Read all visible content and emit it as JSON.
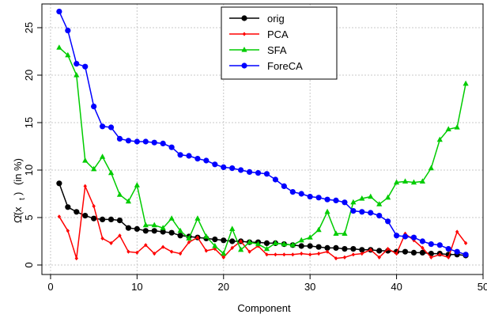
{
  "chart_data": {
    "type": "line",
    "xlabel": "Component",
    "ylabel": "(in %)",
    "xlim": [
      -1,
      50
    ],
    "ylim": [
      -1,
      27.5
    ],
    "xticks": [
      0,
      10,
      20,
      30,
      40,
      50
    ],
    "yticks": [
      0,
      5,
      10,
      15,
      20,
      25
    ],
    "grid": true,
    "legend_position": "top-center",
    "x": [
      1,
      2,
      3,
      4,
      5,
      6,
      7,
      8,
      9,
      10,
      11,
      12,
      13,
      14,
      15,
      16,
      17,
      18,
      19,
      20,
      21,
      22,
      23,
      24,
      25,
      26,
      27,
      28,
      29,
      30,
      31,
      32,
      33,
      34,
      35,
      36,
      37,
      38,
      39,
      40,
      41,
      42,
      43,
      44,
      45,
      46,
      47,
      48
    ],
    "series": [
      {
        "name": "orig",
        "color": "#000000",
        "marker": "circle",
        "values": [
          8.6,
          6.1,
          5.6,
          5.2,
          4.9,
          4.8,
          4.8,
          4.7,
          3.9,
          3.8,
          3.6,
          3.6,
          3.5,
          3.4,
          3.1,
          3.0,
          2.9,
          2.8,
          2.7,
          2.6,
          2.5,
          2.5,
          2.4,
          2.4,
          2.3,
          2.3,
          2.2,
          2.1,
          2.0,
          2.0,
          1.9,
          1.8,
          1.8,
          1.7,
          1.7,
          1.6,
          1.6,
          1.5,
          1.5,
          1.4,
          1.4,
          1.3,
          1.3,
          1.2,
          1.2,
          1.1,
          1.1,
          1.0
        ]
      },
      {
        "name": "PCA",
        "color": "#ff0000",
        "marker": "diamond",
        "values": [
          5.1,
          3.6,
          0.7,
          8.3,
          6.2,
          2.8,
          2.3,
          3.1,
          1.4,
          1.3,
          2.1,
          1.2,
          1.9,
          1.4,
          1.2,
          2.4,
          2.9,
          1.5,
          1.7,
          0.8,
          1.8,
          2.5,
          1.4,
          2.0,
          1.1,
          1.1,
          1.1,
          1.1,
          1.2,
          1.1,
          1.2,
          1.4,
          0.7,
          0.8,
          1.1,
          1.2,
          1.6,
          0.8,
          1.7,
          1.2,
          3.3,
          2.6,
          1.8,
          0.8,
          1.1,
          0.8,
          3.5,
          2.3
        ]
      },
      {
        "name": "SFA",
        "color": "#00cc00",
        "marker": "triangle",
        "values": [
          22.9,
          22.1,
          20.0,
          11.0,
          10.1,
          11.4,
          9.7,
          7.4,
          6.7,
          8.4,
          4.2,
          4.2,
          3.9,
          4.9,
          3.6,
          2.8,
          4.9,
          3.0,
          2.0,
          1.2,
          3.8,
          1.6,
          2.4,
          2.2,
          1.7,
          2.3,
          2.2,
          2.1,
          2.6,
          2.9,
          3.7,
          5.6,
          3.3,
          3.3,
          6.6,
          7.0,
          7.2,
          6.4,
          7.1,
          8.7,
          8.8,
          8.7,
          8.8,
          10.2,
          13.2,
          14.3,
          14.5,
          19.1
        ]
      },
      {
        "name": "ForeCA",
        "color": "#0000ff",
        "marker": "circle",
        "values": [
          26.7,
          24.7,
          21.2,
          20.9,
          16.7,
          14.6,
          14.5,
          13.3,
          13.1,
          13.0,
          13.0,
          12.9,
          12.8,
          12.4,
          11.6,
          11.5,
          11.2,
          11.0,
          10.6,
          10.3,
          10.2,
          10.0,
          9.8,
          9.7,
          9.6,
          9.0,
          8.3,
          7.7,
          7.5,
          7.2,
          7.1,
          6.9,
          6.8,
          6.6,
          5.7,
          5.6,
          5.5,
          5.2,
          4.6,
          3.1,
          3.0,
          2.9,
          2.5,
          2.2,
          2.1,
          1.7,
          1.4,
          1.1
        ]
      }
    ]
  }
}
